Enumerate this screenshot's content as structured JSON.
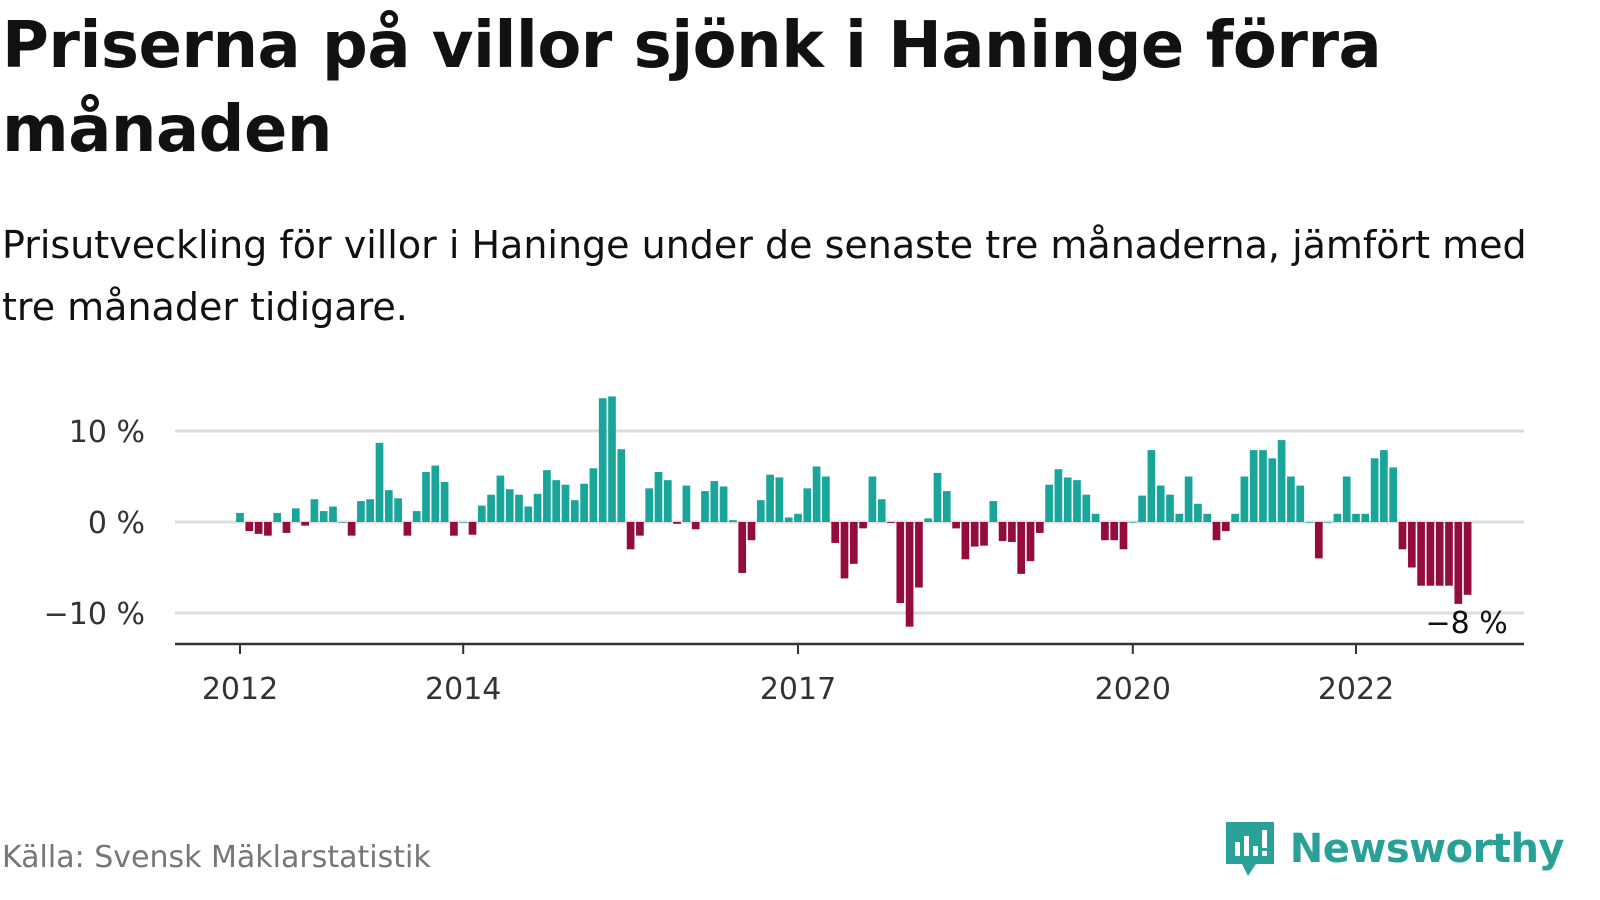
{
  "title": "Priserna på villor sjönk i Haninge förra månaden",
  "subtitle": "Prisutveckling för villor i Haninge under de senaste tre månaderna, jämfört med tre månader tidigare.",
  "source": "Källa: Svensk Mäklarstatistik",
  "brand": {
    "name": "Newsworthy",
    "icon": "newsworthy-logo-icon"
  },
  "colors": {
    "positive": "#1aa59a",
    "negative": "#930c3e",
    "grid": "#dddddd",
    "axis": "#333333"
  },
  "chart_data": {
    "type": "bar",
    "title": "",
    "xlabel": "",
    "ylabel": "",
    "start": "2012-01",
    "ylim": [
      -13,
      15
    ],
    "y_ticks": [
      10,
      0,
      -10
    ],
    "y_tick_labels": [
      "10 %",
      "0 %",
      "−10 %"
    ],
    "x_ticks": [
      "2012",
      "2014",
      "2017",
      "2020",
      "2022"
    ],
    "x_tick_months": [
      "2012-01",
      "2014-01",
      "2017-01",
      "2020-01",
      "2022-01"
    ],
    "last_label": "−8 %",
    "values": [
      1,
      -1,
      -1.3,
      -1.5,
      1,
      -1.2,
      1.5,
      -0.4,
      2.5,
      1.2,
      1.7,
      0,
      -1.5,
      2.3,
      2.5,
      8.7,
      3.5,
      2.6,
      -1.5,
      1.2,
      5.5,
      6.2,
      4.4,
      -1.5,
      0,
      -1.4,
      1.8,
      3,
      5.1,
      3.6,
      3,
      1.7,
      3.1,
      5.7,
      4.6,
      4.1,
      2.4,
      4.2,
      5.9,
      13.6,
      13.8,
      8,
      -3,
      -1.5,
      3.7,
      5.5,
      4.6,
      -0.2,
      4,
      -0.8,
      3.4,
      4.5,
      3.9,
      0.2,
      -5.6,
      -2,
      2.4,
      5.2,
      4.9,
      0.5,
      0.9,
      3.7,
      6.1,
      5,
      -2.3,
      -6.2,
      -4.6,
      -0.7,
      5,
      2.5,
      -0.1,
      -8.9,
      -11.5,
      -7.2,
      0.4,
      5.4,
      3.4,
      -0.7,
      -4.1,
      -2.7,
      -2.6,
      2.3,
      -2.1,
      -2.2,
      -5.7,
      -4.3,
      -1.2,
      4.1,
      5.8,
      4.9,
      4.6,
      3,
      0.9,
      -2,
      -2,
      -3,
      0,
      2.9,
      7.9,
      4,
      3,
      0.9,
      5,
      2,
      0.9,
      -2,
      -1,
      0.9,
      5,
      7.9,
      7.9,
      7,
      9,
      5,
      4,
      0,
      -4,
      0,
      0.9,
      5,
      0.9,
      0.9,
      7,
      7.9,
      6,
      -3,
      -5,
      -7,
      -7,
      -7,
      -7,
      -9,
      -8
    ]
  }
}
